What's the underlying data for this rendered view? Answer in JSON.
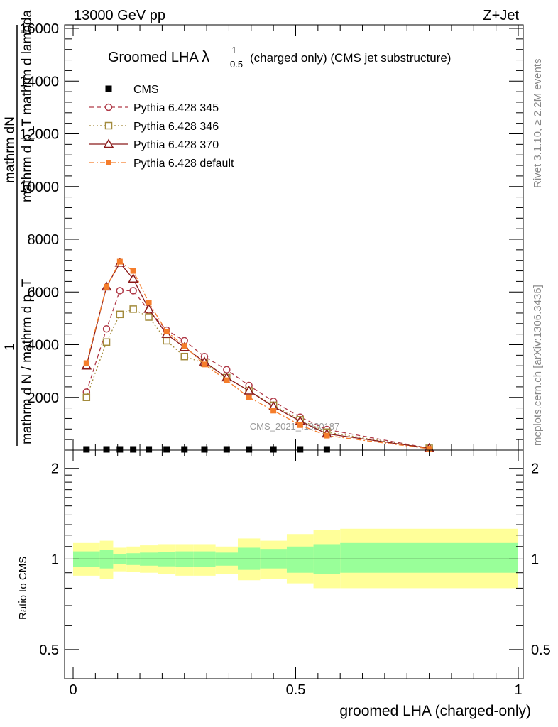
{
  "header": {
    "left": "13000 GeV pp",
    "right": "Z+Jet",
    "title_main": "Groomed LHA ",
    "title_lambda": "λ",
    "title_sup": "1",
    "title_sub": "0.5",
    "title_rest": " (charged only) (CMS jet substructure)"
  },
  "side": {
    "rivet": "Rivet 3.1.10, ≥ 2.2M events",
    "mcplots": "mcplots.cern.ch [arXiv:1306.3436]"
  },
  "watermark": "CMS_2021_I1920187",
  "ylabel_top": {
    "frac1_num": "mathrm dN",
    "frac1_den": "mathrm d p_T mathrm d lambda",
    "frac2_num": "1",
    "frac2_den": "mathrm d N / mathrm d p_T"
  },
  "ylabel_ratio": "Ratio to CMS",
  "xlabel": "groomed LHA (charged-only)",
  "colors": {
    "cms": "#000000",
    "p345": "#b03a48",
    "p346": "#a38b3c",
    "p370": "#8b1a1a",
    "pdef": "#f57d2b",
    "band_outer": "#ffff99",
    "band_inner": "#99ff99"
  },
  "chart_data": [
    {
      "type": "line",
      "x": [
        0.03,
        0.075,
        0.105,
        0.135,
        0.17,
        0.21,
        0.25,
        0.295,
        0.345,
        0.395,
        0.45,
        0.51,
        0.57,
        0.8
      ],
      "xlim": [
        0,
        1
      ],
      "ylim": [
        0,
        16000
      ],
      "yticks": [
        2000,
        4000,
        6000,
        8000,
        10000,
        12000,
        14000,
        16000
      ],
      "xticks": [
        0,
        0.5,
        1
      ],
      "series": [
        {
          "name": "CMS",
          "key": "cms",
          "marker": "filled-square",
          "line": "none",
          "values": [
            30,
            30,
            30,
            30,
            30,
            30,
            30,
            30,
            30,
            30,
            30,
            30,
            30,
            null
          ]
        },
        {
          "name": "Pythia 6.428 345",
          "key": "p345",
          "marker": "open-circle",
          "line": "dashed",
          "values": [
            2200,
            4600,
            6050,
            6050,
            5300,
            4550,
            4150,
            3550,
            3050,
            2450,
            1850,
            1250,
            780,
            70
          ]
        },
        {
          "name": "Pythia 6.428 346",
          "key": "p346",
          "marker": "open-square",
          "line": "dotted",
          "values": [
            2000,
            4100,
            5150,
            5350,
            5050,
            4150,
            3550,
            3300,
            2750,
            2250,
            1700,
            1150,
            680,
            70
          ]
        },
        {
          "name": "Pythia 6.428 370",
          "key": "p370",
          "marker": "open-triangle",
          "line": "solid",
          "values": [
            3200,
            6200,
            7100,
            6500,
            5350,
            4400,
            3900,
            3350,
            2750,
            2250,
            1650,
            1100,
            620,
            70
          ]
        },
        {
          "name": "Pythia 6.428 default",
          "key": "pdef",
          "marker": "filled-square-small",
          "line": "dashdot",
          "values": [
            3300,
            6200,
            7150,
            6800,
            5600,
            4500,
            3950,
            3250,
            2650,
            2000,
            1500,
            950,
            550,
            50
          ]
        }
      ]
    },
    {
      "type": "area",
      "ylabel": "Ratio to CMS",
      "xlabel": "groomed LHA (charged-only)",
      "ylim": [
        0.4,
        2.3
      ],
      "log_y": true,
      "yticks": [
        0.5,
        1,
        2
      ],
      "bins": [
        {
          "x0": 0.0,
          "x1": 0.06,
          "inner": [
            0.94,
            1.06
          ],
          "outer": [
            0.88,
            1.13
          ]
        },
        {
          "x0": 0.06,
          "x1": 0.09,
          "inner": [
            0.93,
            1.07
          ],
          "outer": [
            0.86,
            1.15
          ]
        },
        {
          "x0": 0.09,
          "x1": 0.12,
          "inner": [
            0.96,
            1.04
          ],
          "outer": [
            0.91,
            1.09
          ]
        },
        {
          "x0": 0.12,
          "x1": 0.15,
          "inner": [
            0.955,
            1.045
          ],
          "outer": [
            0.905,
            1.1
          ]
        },
        {
          "x0": 0.15,
          "x1": 0.19,
          "inner": [
            0.95,
            1.05
          ],
          "outer": [
            0.9,
            1.11
          ]
        },
        {
          "x0": 0.19,
          "x1": 0.23,
          "inner": [
            0.945,
            1.055
          ],
          "outer": [
            0.89,
            1.12
          ]
        },
        {
          "x0": 0.23,
          "x1": 0.27,
          "inner": [
            0.94,
            1.06
          ],
          "outer": [
            0.88,
            1.12
          ]
        },
        {
          "x0": 0.27,
          "x1": 0.32,
          "inner": [
            0.94,
            1.06
          ],
          "outer": [
            0.88,
            1.12
          ]
        },
        {
          "x0": 0.32,
          "x1": 0.37,
          "inner": [
            0.95,
            1.05
          ],
          "outer": [
            0.89,
            1.1
          ]
        },
        {
          "x0": 0.37,
          "x1": 0.42,
          "inner": [
            0.92,
            1.09
          ],
          "outer": [
            0.85,
            1.17
          ]
        },
        {
          "x0": 0.42,
          "x1": 0.48,
          "inner": [
            0.93,
            1.08
          ],
          "outer": [
            0.86,
            1.15
          ]
        },
        {
          "x0": 0.48,
          "x1": 0.54,
          "inner": [
            0.9,
            1.1
          ],
          "outer": [
            0.83,
            1.21
          ]
        },
        {
          "x0": 0.54,
          "x1": 0.6,
          "inner": [
            0.89,
            1.12
          ],
          "outer": [
            0.8,
            1.25
          ]
        },
        {
          "x0": 0.6,
          "x1": 1.0,
          "inner": [
            0.9,
            1.13
          ],
          "outer": [
            0.8,
            1.26
          ]
        }
      ]
    }
  ]
}
